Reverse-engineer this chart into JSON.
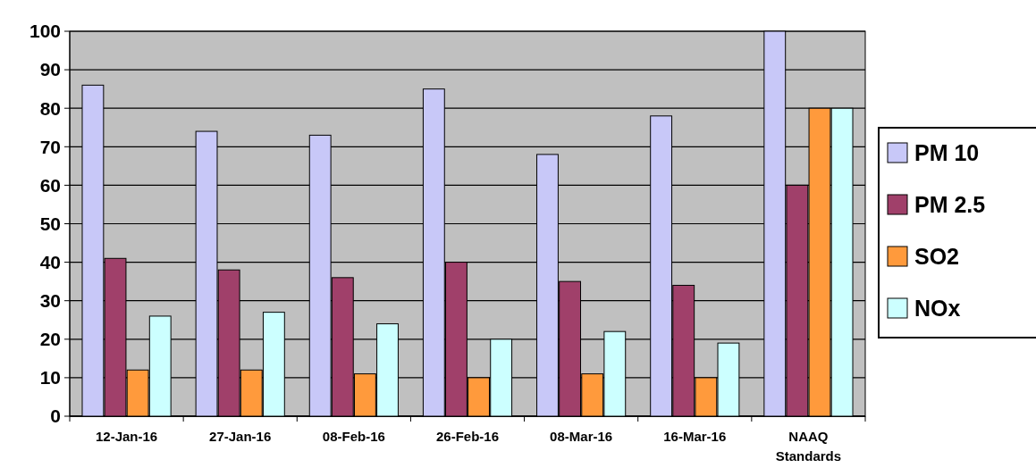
{
  "chart_data": {
    "type": "bar",
    "categories": [
      "12-Jan-16",
      "27-Jan-16",
      "08-Feb-16",
      "26-Feb-16",
      "08-Mar-16",
      "16-Mar-16",
      "NAAQ Standards"
    ],
    "series": [
      {
        "name": "PM 10",
        "color": "#c8c8f8",
        "values": [
          86,
          74,
          73,
          85,
          68,
          78,
          100
        ]
      },
      {
        "name": "PM 2.5",
        "color": "#a0406a",
        "values": [
          41,
          38,
          36,
          40,
          35,
          34,
          60
        ]
      },
      {
        "name": "SO2",
        "color": "#ff9a3c",
        "values": [
          12,
          12,
          11,
          10,
          11,
          10,
          80
        ]
      },
      {
        "name": "NOx",
        "color": "#ccffff",
        "values": [
          26,
          27,
          24,
          20,
          22,
          19,
          80
        ]
      }
    ],
    "ylim": [
      0,
      100
    ],
    "yticks": [
      0,
      10,
      20,
      30,
      40,
      50,
      60,
      70,
      80,
      90,
      100
    ],
    "grid": "y",
    "legend": "right"
  }
}
